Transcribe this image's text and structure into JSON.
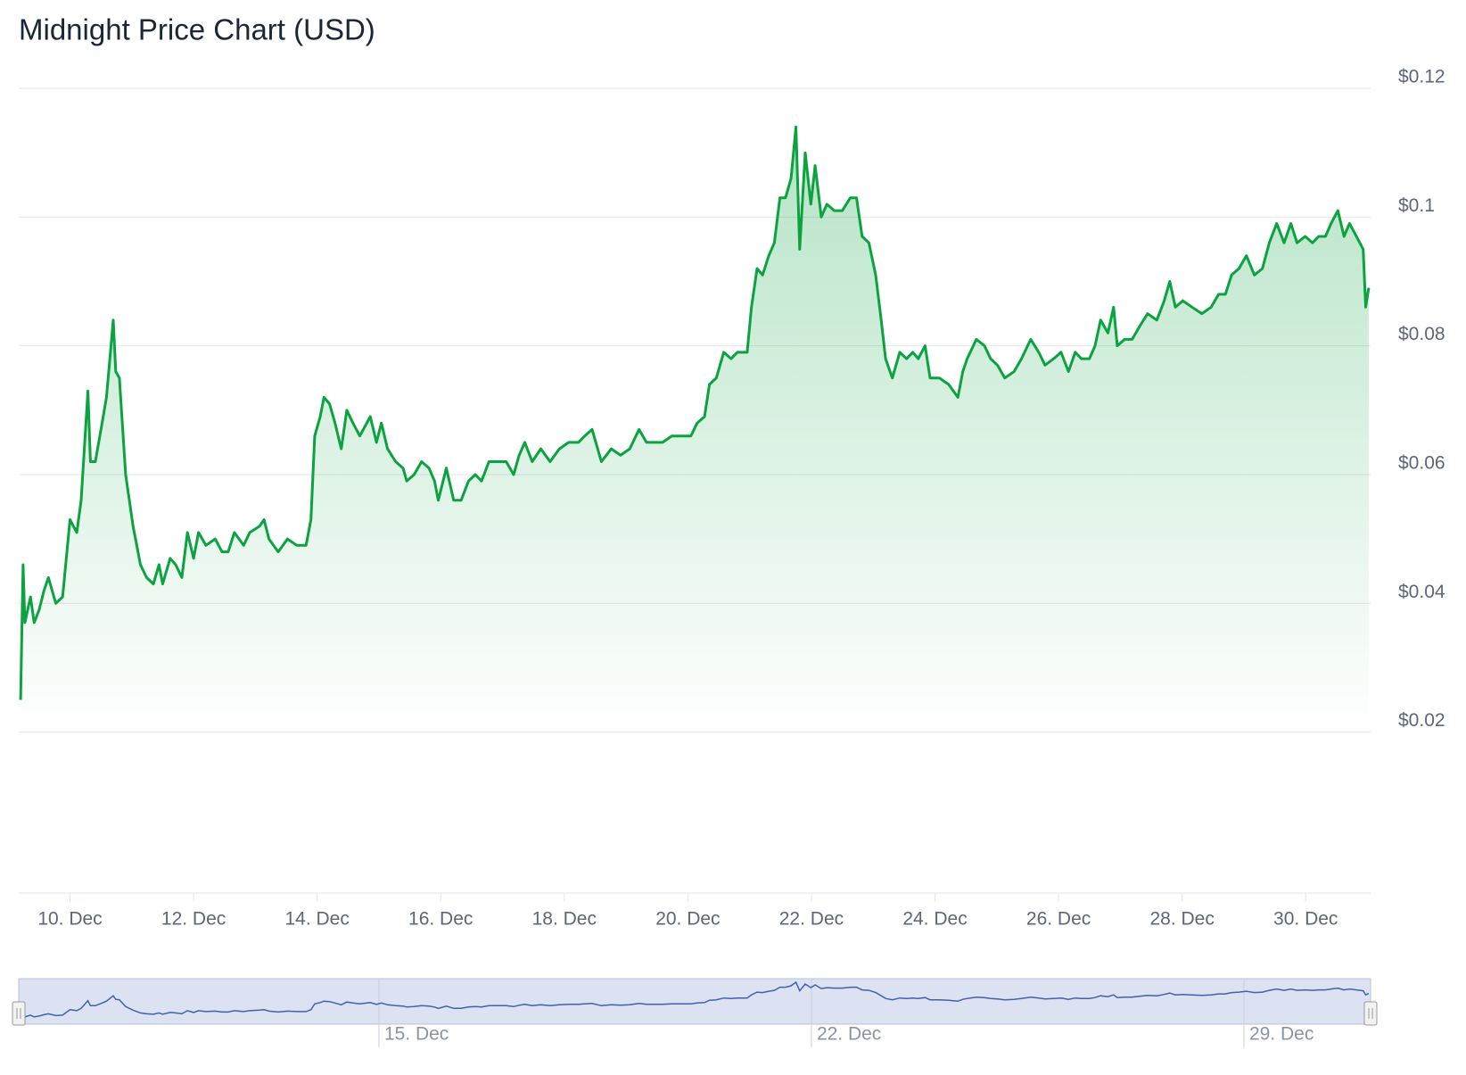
{
  "chart_data": {
    "type": "area",
    "title": "Midnight Price Chart (USD)",
    "color": "#0aa33f",
    "navigator_color": "#3f62b0",
    "xlim": [
      9.17,
      31.05
    ],
    "xticks": [
      {
        "value": 10,
        "label": "10. Dec"
      },
      {
        "value": 12,
        "label": "12. Dec"
      },
      {
        "value": 14,
        "label": "14. Dec"
      },
      {
        "value": 16,
        "label": "16. Dec"
      },
      {
        "value": 18,
        "label": "18. Dec"
      },
      {
        "value": 20,
        "label": "20. Dec"
      },
      {
        "value": 22,
        "label": "22. Dec"
      },
      {
        "value": 24,
        "label": "24. Dec"
      },
      {
        "value": 26,
        "label": "26. Dec"
      },
      {
        "value": 28,
        "label": "28. Dec"
      },
      {
        "value": 30,
        "label": "30. Dec"
      }
    ],
    "navigator_xticks": [
      {
        "value": 15,
        "label": "15. Dec"
      },
      {
        "value": 22,
        "label": "22. Dec"
      },
      {
        "value": 29,
        "label": "29. Dec"
      }
    ],
    "ylim": [
      -0.005,
      0.12
    ],
    "yticks": [
      {
        "value": 0.02,
        "label": "$0.02"
      },
      {
        "value": 0.04,
        "label": "$0.04"
      },
      {
        "value": 0.06,
        "label": "$0.06"
      },
      {
        "value": 0.08,
        "label": "$0.08"
      },
      {
        "value": 0.1,
        "label": "$0.1"
      },
      {
        "value": 0.12,
        "label": "$0.12"
      }
    ],
    "grid": true,
    "x": [
      9.2,
      9.24,
      9.27,
      9.36,
      9.42,
      9.5,
      9.58,
      9.65,
      9.77,
      9.88,
      10.0,
      10.11,
      10.18,
      10.29,
      10.33,
      10.41,
      10.52,
      10.59,
      10.7,
      10.74,
      10.8,
      10.9,
      11.02,
      11.14,
      11.24,
      11.35,
      11.44,
      11.5,
      11.62,
      11.71,
      11.81,
      11.9,
      12.0,
      12.08,
      12.2,
      12.35,
      12.46,
      12.56,
      12.66,
      12.81,
      12.91,
      13.07,
      13.14,
      13.22,
      13.37,
      13.52,
      13.67,
      13.82,
      13.9,
      13.96,
      14.05,
      14.11,
      14.2,
      14.29,
      14.39,
      14.48,
      14.58,
      14.69,
      14.86,
      14.96,
      15.04,
      15.14,
      15.27,
      15.39,
      15.45,
      15.57,
      15.69,
      15.81,
      15.9,
      15.96,
      16.09,
      16.21,
      16.33,
      16.45,
      16.56,
      16.66,
      16.78,
      16.94,
      17.06,
      17.18,
      17.27,
      17.36,
      17.48,
      17.62,
      17.77,
      17.92,
      18.07,
      18.23,
      18.33,
      18.45,
      18.6,
      18.76,
      18.91,
      19.06,
      19.21,
      19.33,
      19.44,
      19.59,
      19.74,
      19.89,
      20.05,
      20.15,
      20.27,
      20.35,
      20.46,
      20.58,
      20.7,
      20.8,
      20.96,
      21.03,
      21.12,
      21.21,
      21.31,
      21.4,
      21.49,
      21.58,
      21.67,
      21.75,
      21.81,
      21.9,
      21.99,
      22.06,
      22.16,
      22.25,
      22.37,
      22.5,
      22.63,
      22.73,
      22.82,
      22.93,
      23.04,
      23.13,
      23.2,
      23.31,
      23.43,
      23.54,
      23.64,
      23.73,
      23.84,
      23.92,
      24.07,
      24.22,
      24.37,
      24.45,
      24.52,
      24.67,
      24.8,
      24.9,
      25.01,
      25.13,
      25.28,
      25.4,
      25.55,
      25.68,
      25.78,
      25.92,
      26.04,
      26.16,
      26.27,
      26.37,
      26.5,
      26.59,
      26.68,
      26.8,
      26.89,
      26.95,
      27.07,
      27.19,
      27.31,
      27.44,
      27.59,
      27.71,
      27.8,
      27.89,
      28.01,
      28.16,
      28.32,
      28.47,
      28.59,
      28.7,
      28.8,
      28.92,
      29.04,
      29.17,
      29.3,
      29.41,
      29.53,
      29.65,
      29.76,
      29.86,
      29.99,
      30.11,
      30.21,
      30.32,
      30.41,
      30.52,
      30.62,
      30.71,
      30.82,
      30.93,
      30.97,
      31.02
    ],
    "values": [
      0.025,
      0.046,
      0.037,
      0.041,
      0.037,
      0.039,
      0.042,
      0.044,
      0.04,
      0.041,
      0.053,
      0.051,
      0.056,
      0.073,
      0.062,
      0.062,
      0.068,
      0.072,
      0.084,
      0.076,
      0.075,
      0.06,
      0.052,
      0.046,
      0.044,
      0.043,
      0.046,
      0.043,
      0.047,
      0.046,
      0.044,
      0.051,
      0.047,
      0.051,
      0.049,
      0.05,
      0.048,
      0.048,
      0.051,
      0.049,
      0.051,
      0.052,
      0.053,
      0.05,
      0.048,
      0.05,
      0.049,
      0.049,
      0.053,
      0.066,
      0.069,
      0.072,
      0.071,
      0.068,
      0.064,
      0.07,
      0.068,
      0.066,
      0.069,
      0.065,
      0.068,
      0.064,
      0.062,
      0.061,
      0.059,
      0.06,
      0.062,
      0.061,
      0.059,
      0.056,
      0.061,
      0.056,
      0.056,
      0.059,
      0.06,
      0.059,
      0.062,
      0.062,
      0.062,
      0.06,
      0.063,
      0.065,
      0.062,
      0.064,
      0.062,
      0.064,
      0.065,
      0.065,
      0.066,
      0.067,
      0.062,
      0.064,
      0.063,
      0.064,
      0.067,
      0.065,
      0.065,
      0.065,
      0.066,
      0.066,
      0.066,
      0.068,
      0.069,
      0.074,
      0.075,
      0.079,
      0.078,
      0.079,
      0.079,
      0.086,
      0.092,
      0.091,
      0.094,
      0.096,
      0.103,
      0.103,
      0.106,
      0.114,
      0.095,
      0.11,
      0.102,
      0.108,
      0.1,
      0.102,
      0.101,
      0.101,
      0.103,
      0.103,
      0.097,
      0.096,
      0.091,
      0.084,
      0.078,
      0.075,
      0.079,
      0.078,
      0.079,
      0.078,
      0.08,
      0.075,
      0.075,
      0.074,
      0.072,
      0.076,
      0.078,
      0.081,
      0.08,
      0.078,
      0.077,
      0.075,
      0.076,
      0.078,
      0.081,
      0.079,
      0.077,
      0.078,
      0.079,
      0.076,
      0.079,
      0.078,
      0.078,
      0.08,
      0.084,
      0.082,
      0.086,
      0.08,
      0.081,
      0.081,
      0.083,
      0.085,
      0.084,
      0.087,
      0.09,
      0.086,
      0.087,
      0.086,
      0.085,
      0.086,
      0.088,
      0.088,
      0.091,
      0.092,
      0.094,
      0.091,
      0.092,
      0.096,
      0.099,
      0.096,
      0.099,
      0.096,
      0.097,
      0.096,
      0.097,
      0.097,
      0.099,
      0.101,
      0.097,
      0.099,
      0.097,
      0.095,
      0.086,
      0.089
    ]
  }
}
